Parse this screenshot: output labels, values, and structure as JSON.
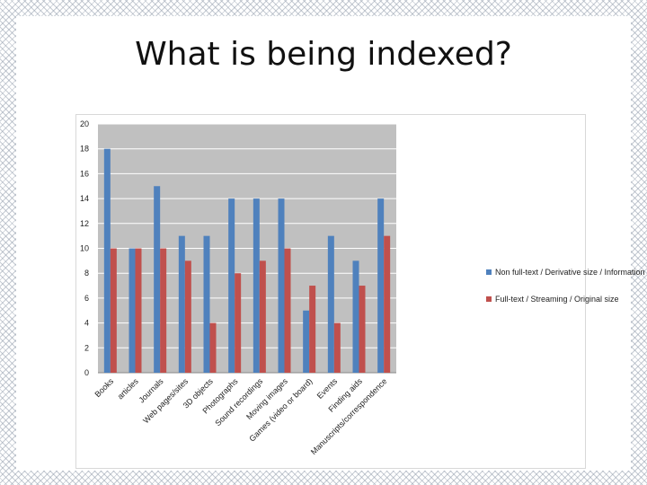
{
  "slide": {
    "title": "What is being indexed?"
  },
  "colors": {
    "plot_background": "#c0c0c0",
    "series_1": "#4f81bd",
    "series_2": "#c0504d"
  },
  "chart_data": {
    "type": "bar",
    "categories": [
      "Books",
      "articles",
      "Journals",
      "Web pages/sites",
      "3D objects",
      "Photographs",
      "Sound recordings",
      "Moving images",
      "Games (video or board)",
      "Events",
      "Finding aids",
      "Manuscripts/correspondence"
    ],
    "series": [
      {
        "name": "Non full-text / Derivative size / Information only",
        "values": [
          18,
          10,
          15,
          11,
          11,
          14,
          14,
          14,
          5,
          11,
          9,
          14
        ]
      },
      {
        "name": "Full-text / Streaming / Original size",
        "values": [
          10,
          10,
          10,
          9,
          4,
          8,
          9,
          10,
          7,
          4,
          7,
          11
        ]
      }
    ],
    "y_ticks": [
      0,
      2,
      4,
      6,
      8,
      10,
      12,
      14,
      16,
      18,
      20
    ],
    "ylim": [
      0,
      20
    ],
    "title": "",
    "xlabel": "",
    "ylabel": "",
    "grid": true,
    "legend_position": "right"
  }
}
